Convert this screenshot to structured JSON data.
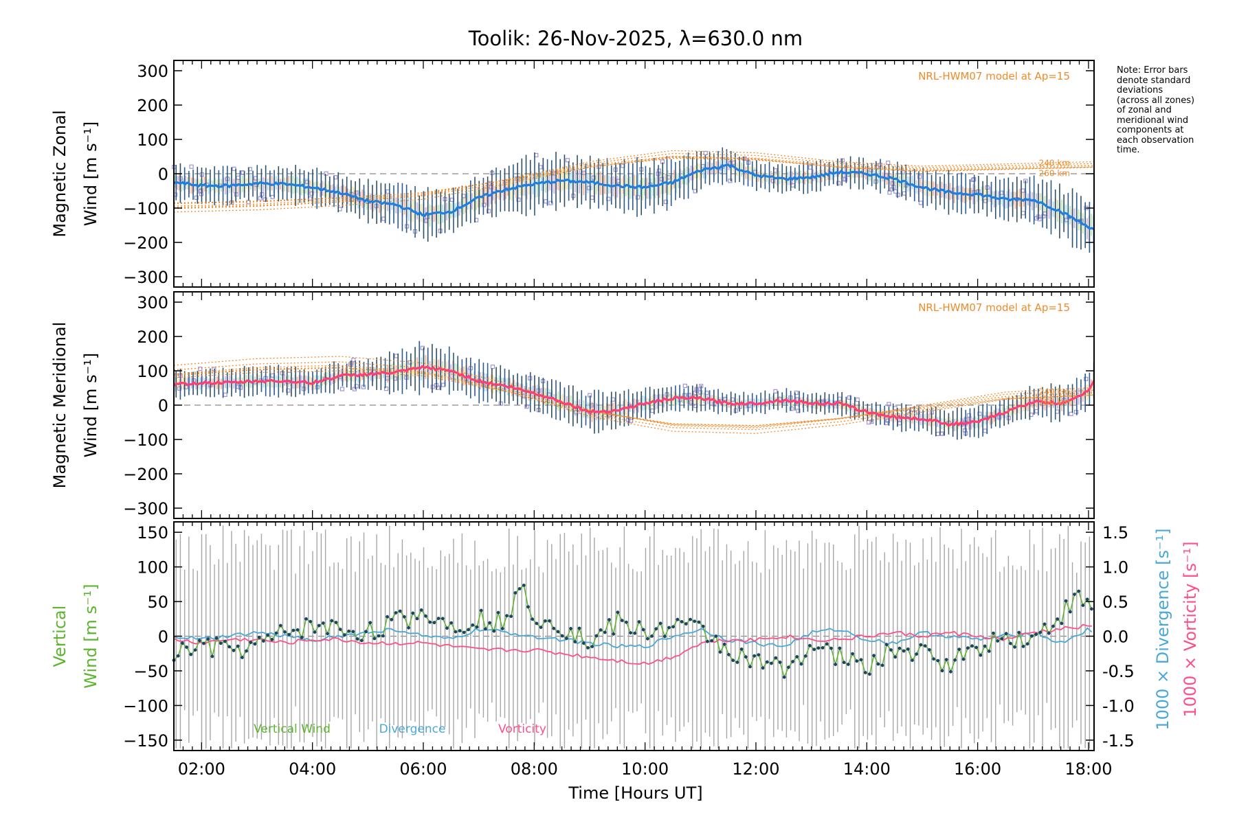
{
  "chart_data": {
    "type": "line",
    "title": "Toolik: 26-Nov-2025, λ=630.0 nm",
    "xlabel": "Time [Hours UT]",
    "xlim": [
      1.5,
      18.1
    ],
    "x_ticks": [
      2,
      4,
      6,
      8,
      10,
      12,
      14,
      16,
      18
    ],
    "x_tick_labels": [
      "02:00",
      "04:00",
      "06:00",
      "08:00",
      "10:00",
      "12:00",
      "14:00",
      "16:00",
      "18:00"
    ],
    "note": [
      "Note: Error bars",
      "denote standard",
      "deviations",
      "(across all zones)",
      "of zonal and",
      "meridional wind",
      "components at",
      "each observation",
      "time."
    ],
    "panels": [
      {
        "name": "zonal",
        "ylabel_line1": "Magnetic Zonal",
        "ylabel_line2": "Wind [m s⁻¹]",
        "ylim": [
          -330,
          330
        ],
        "y_ticks": [
          300,
          200,
          100,
          0,
          -100,
          -200,
          -300
        ],
        "model_label": "NRL-HWM07 model at Ap=15",
        "model_alt_labels": [
          "240 km",
          "260 km"
        ],
        "series": [
          {
            "name": "Mean zonal wind",
            "color": "#1f7fe0",
            "x": [
              1.5,
              2.0,
              2.5,
              3.0,
              3.5,
              4.0,
              4.5,
              5.0,
              5.5,
              6.0,
              6.5,
              7.0,
              7.5,
              8.0,
              8.5,
              9.0,
              9.5,
              10.0,
              10.5,
              11.0,
              11.5,
              12.0,
              12.5,
              13.0,
              13.5,
              14.0,
              14.5,
              15.0,
              15.5,
              16.0,
              16.5,
              17.0,
              17.5,
              18.0,
              18.1
            ],
            "y": [
              -25,
              -35,
              -35,
              -28,
              -30,
              -40,
              -55,
              -80,
              -90,
              -120,
              -110,
              -70,
              -45,
              -30,
              -20,
              -25,
              -35,
              -40,
              -25,
              10,
              25,
              -5,
              -15,
              -10,
              5,
              0,
              -15,
              -40,
              -55,
              -60,
              -75,
              -75,
              -110,
              -155,
              -160
            ],
            "spread": [
              50,
              50,
              50,
              50,
              50,
              50,
              55,
              55,
              60,
              70,
              60,
              65,
              70,
              80,
              75,
              70,
              75,
              75,
              70,
              50,
              45,
              40,
              40,
              40,
              40,
              40,
              45,
              50,
              55,
              55,
              55,
              60,
              70,
              75,
              75
            ]
          },
          {
            "name": "HWM07 model",
            "color": "#f08a28",
            "x": [
              1.5,
              3.0,
              4.5,
              6.0,
              7.5,
              9.0,
              10.5,
              12.0,
              13.5,
              15.0,
              16.5,
              18.1
            ],
            "y": [
              -85,
              -80,
              -70,
              -55,
              -20,
              20,
              45,
              40,
              20,
              10,
              15,
              20
            ]
          }
        ]
      },
      {
        "name": "meridional",
        "ylabel_line1": "Magnetic Meridional",
        "ylabel_line2": "Wind [m s⁻¹]",
        "ylim": [
          -330,
          330
        ],
        "y_ticks": [
          300,
          200,
          100,
          0,
          -100,
          -200,
          -300
        ],
        "model_label": "NRL-HWM07 model at Ap=15",
        "model_alt_labels": [
          "240 km",
          "260 km"
        ],
        "series": [
          {
            "name": "Mean meridional wind",
            "color": "#ff3f73",
            "x": [
              1.5,
              2.0,
              2.5,
              3.0,
              3.5,
              4.0,
              4.5,
              5.0,
              5.5,
              6.0,
              6.5,
              7.0,
              7.5,
              8.0,
              8.5,
              9.0,
              9.5,
              10.0,
              10.5,
              11.0,
              11.5,
              12.0,
              12.5,
              13.0,
              13.5,
              14.0,
              14.5,
              15.0,
              15.5,
              16.0,
              16.5,
              17.0,
              17.5,
              18.0,
              18.1
            ],
            "y": [
              60,
              65,
              65,
              70,
              70,
              65,
              85,
              90,
              95,
              110,
              100,
              70,
              55,
              35,
              10,
              -20,
              -15,
              5,
              20,
              20,
              5,
              5,
              15,
              5,
              5,
              -20,
              -35,
              -40,
              -55,
              -50,
              -20,
              10,
              5,
              40,
              75
            ],
            "spread": [
              40,
              40,
              40,
              40,
              40,
              40,
              40,
              45,
              55,
              70,
              60,
              55,
              50,
              50,
              55,
              55,
              50,
              45,
              40,
              35,
              30,
              30,
              30,
              30,
              30,
              30,
              35,
              35,
              40,
              40,
              40,
              45,
              50,
              50,
              50
            ]
          },
          {
            "name": "HWM07 model",
            "color": "#f08a28",
            "x": [
              1.5,
              3.0,
              4.5,
              6.0,
              7.5,
              9.0,
              10.5,
              12.0,
              13.5,
              15.0,
              16.5,
              18.1
            ],
            "y": [
              80,
              95,
              100,
              85,
              40,
              -20,
              -55,
              -60,
              -40,
              -10,
              20,
              30
            ]
          }
        ]
      },
      {
        "name": "vertical",
        "ylabel_line1": "Vertical",
        "ylabel_line2": "Wind [m s⁻¹]",
        "ylim": [
          -165,
          165
        ],
        "y_ticks": [
          150,
          100,
          50,
          0,
          -50,
          -100,
          -150
        ],
        "y2_label_div": "1000 × Divergence [s⁻¹]",
        "y2_label_vort": "1000 × Vorticity [s⁻¹]",
        "y2lim": [
          -1.65,
          1.65
        ],
        "y2_ticks": [
          1.5,
          1.0,
          0.5,
          0.0,
          -0.5,
          -1.0,
          -1.5
        ],
        "legend": [
          "Vertical Wind",
          "Divergence",
          "Vorticity"
        ],
        "series": [
          {
            "name": "Vertical Wind",
            "color": "#5db42f",
            "x": [
              1.5,
              2.0,
              2.5,
              3.0,
              3.5,
              4.0,
              4.5,
              5.0,
              5.5,
              6.0,
              6.5,
              7.0,
              7.5,
              7.8,
              8.0,
              8.5,
              9.0,
              9.5,
              10.0,
              10.5,
              11.0,
              11.5,
              12.0,
              12.5,
              13.0,
              13.5,
              14.0,
              14.5,
              15.0,
              15.5,
              16.0,
              16.5,
              17.0,
              17.5,
              17.8,
              18.1
            ],
            "y": [
              -25,
              -15,
              -20,
              -15,
              5,
              15,
              10,
              5,
              20,
              35,
              15,
              25,
              20,
              75,
              30,
              15,
              -10,
              20,
              5,
              15,
              10,
              -20,
              -40,
              -45,
              -15,
              -30,
              -45,
              -20,
              -25,
              -40,
              -15,
              0,
              -5,
              30,
              55,
              35
            ]
          },
          {
            "name": "Divergence",
            "color": "#4aa8d8",
            "x": [
              1.5,
              2.0,
              2.5,
              3.0,
              3.5,
              4.0,
              4.5,
              5.0,
              5.5,
              6.0,
              6.5,
              7.0,
              7.5,
              8.0,
              8.5,
              9.0,
              9.5,
              10.0,
              10.5,
              11.0,
              11.5,
              12.0,
              12.5,
              13.0,
              13.5,
              14.0,
              14.5,
              15.0,
              15.5,
              16.0,
              16.5,
              17.0,
              17.5,
              18.0,
              18.1
            ],
            "y": [
              0.0,
              -0.05,
              0.0,
              0.05,
              0.0,
              -0.05,
              0.0,
              0.05,
              0.1,
              0.0,
              -0.05,
              0.1,
              0.05,
              0.0,
              -0.05,
              -0.1,
              -0.15,
              -0.15,
              0.0,
              0.1,
              -0.05,
              -0.1,
              -0.15,
              0.05,
              0.1,
              -0.05,
              -0.1,
              0.05,
              0.0,
              -0.05,
              0.0,
              0.05,
              -0.1,
              0.1,
              0.0
            ]
          },
          {
            "name": "Vorticity",
            "color": "#ff4f86",
            "x": [
              1.5,
              2.0,
              2.5,
              3.0,
              3.5,
              4.0,
              4.5,
              5.0,
              5.5,
              6.0,
              6.5,
              7.0,
              7.5,
              8.0,
              8.5,
              9.0,
              9.5,
              10.0,
              10.5,
              11.0,
              11.5,
              12.0,
              12.5,
              13.0,
              13.5,
              14.0,
              14.5,
              15.0,
              15.5,
              16.0,
              16.5,
              17.0,
              17.5,
              18.0,
              18.1
            ],
            "y": [
              -0.05,
              -0.1,
              -0.05,
              -0.05,
              -0.1,
              -0.05,
              -0.05,
              -0.1,
              -0.1,
              -0.1,
              -0.15,
              -0.2,
              -0.2,
              -0.2,
              -0.25,
              -0.3,
              -0.35,
              -0.4,
              -0.3,
              -0.1,
              -0.05,
              -0.05,
              0.0,
              -0.05,
              -0.05,
              0.0,
              0.05,
              0.0,
              0.05,
              0.0,
              -0.05,
              0.05,
              0.1,
              0.15,
              0.1
            ]
          }
        ]
      }
    ]
  }
}
